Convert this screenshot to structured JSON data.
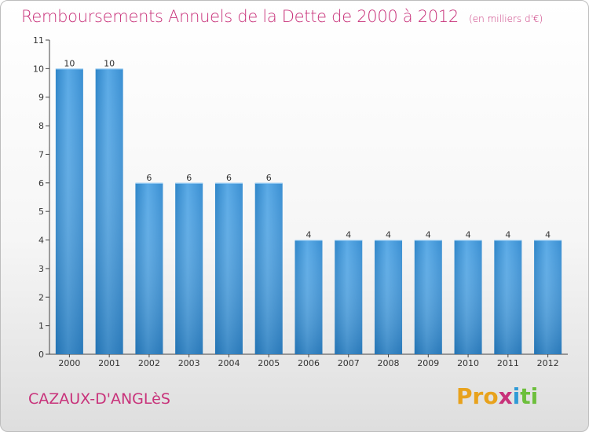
{
  "chart_data": {
    "type": "bar",
    "title": "Remboursements Annuels de la Dette de 2000 à 2012",
    "subtitle": "(en milliers d'€)",
    "categories": [
      "2000",
      "2001",
      "2002",
      "2003",
      "2004",
      "2005",
      "2006",
      "2007",
      "2008",
      "2009",
      "2010",
      "2011",
      "2012"
    ],
    "values": [
      10,
      10,
      6,
      6,
      6,
      6,
      4,
      4,
      4,
      4,
      4,
      4,
      4
    ],
    "ylim": [
      0,
      11
    ],
    "yticks": [
      0,
      1,
      2,
      3,
      4,
      5,
      6,
      7,
      8,
      9,
      10,
      11
    ],
    "xlabel": "",
    "ylabel": "",
    "grid": false,
    "bar_color": "#3d95d8"
  },
  "footer": {
    "commune": "CAZAUX-D'ANGLèS",
    "brand_parts": [
      "Pro",
      "x",
      "i",
      "ti"
    ]
  }
}
